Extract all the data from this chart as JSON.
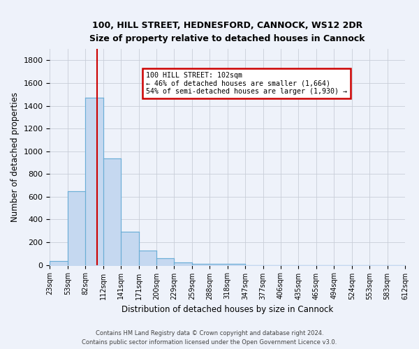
{
  "title1": "100, HILL STREET, HEDNESFORD, CANNOCK, WS12 2DR",
  "title2": "Size of property relative to detached houses in Cannock",
  "xlabel": "Distribution of detached houses by size in Cannock",
  "ylabel": "Number of detached properties",
  "categories": [
    "23sqm",
    "53sqm",
    "82sqm",
    "112sqm",
    "141sqm",
    "171sqm",
    "200sqm",
    "229sqm",
    "259sqm",
    "288sqm",
    "318sqm",
    "347sqm",
    "377sqm",
    "406sqm",
    "435sqm",
    "465sqm",
    "494sqm",
    "524sqm",
    "553sqm",
    "583sqm",
    "612sqm"
  ],
  "bin_heights": [
    35,
    650,
    1470,
    935,
    290,
    125,
    60,
    22,
    10,
    10,
    10
  ],
  "bar_color": "#c5d8f0",
  "bar_edge_color": "#6aaed6",
  "background_color": "#eef2fa",
  "grid_color": "#c8cdd8",
  "vline_color": "#cc0000",
  "annotation_text": "100 HILL STREET: 102sqm\n← 46% of detached houses are smaller (1,664)\n54% of semi-detached houses are larger (1,930) →",
  "annotation_box_color": "#cc0000",
  "ylim": [
    0,
    1900
  ],
  "footer1": "Contains HM Land Registry data © Crown copyright and database right 2024.",
  "footer2": "Contains public sector information licensed under the Open Government Licence v3.0."
}
